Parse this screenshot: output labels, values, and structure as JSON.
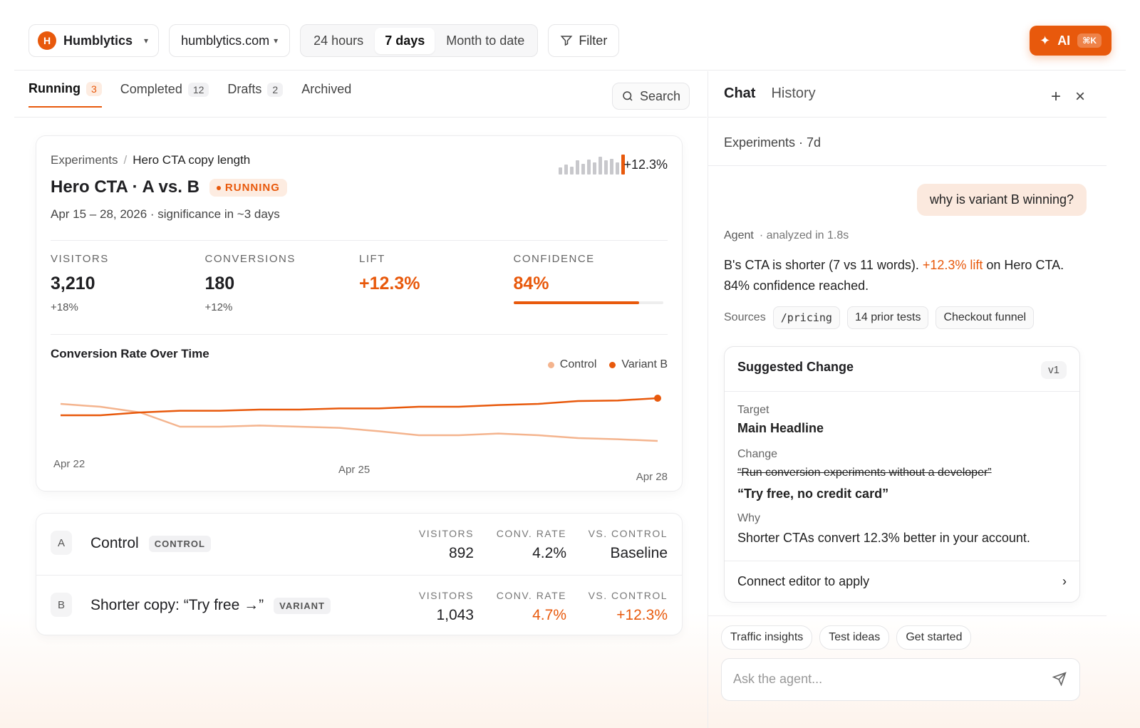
{
  "topbar": {
    "workspace": {
      "initial": "H",
      "name": "Humblytics"
    },
    "domain": "humblytics.com",
    "ranges": [
      "24 hours",
      "7 days",
      "Month to date"
    ],
    "active_range": "7 days",
    "filter_label": "Filter",
    "ai_label": "AI",
    "ai_shortcut": "⌘K"
  },
  "tabs": [
    {
      "label": "Running",
      "count": "3"
    },
    {
      "label": "Completed",
      "count": "12"
    },
    {
      "label": "Drafts",
      "count": "2"
    },
    {
      "label": "Archived",
      "count": ""
    }
  ],
  "search_label": "Search",
  "experiment": {
    "breadcrumb_root": "Experiments",
    "breadcrumb_current": "Hero CTA copy length",
    "title": "Hero CTA · A vs. B",
    "status": "RUNNING",
    "dates": "Apr 15 – 28, 2026 · significance in ~3 days",
    "spark_value": "+12.3%",
    "spark_bars": [
      0.35,
      0.5,
      0.4,
      0.7,
      0.55,
      0.75,
      0.6,
      0.9,
      0.7,
      0.8,
      0.6,
      1.0
    ],
    "metrics": [
      {
        "label": "VISITORS",
        "value": "3,210",
        "sub": "+18%"
      },
      {
        "label": "CONVERSIONS",
        "value": "180",
        "sub": "+12%"
      },
      {
        "label": "LIFT",
        "value": "+12.3%",
        "sub": ""
      },
      {
        "label": "CONFIDENCE",
        "value": "84%",
        "sub": ""
      }
    ],
    "confidence_fraction": 0.84
  },
  "chart_data": {
    "type": "line",
    "title": "Conversion Rate Over Time",
    "x_ticks": [
      "Apr 22",
      "Apr 25",
      "Apr 28"
    ],
    "grid": false,
    "legend_position": "top-right",
    "series": [
      {
        "name": "Control",
        "color": "#f4b48e",
        "values": [
          4.6,
          4.55,
          4.45,
          4.2,
          4.2,
          4.22,
          4.2,
          4.18,
          4.12,
          4.05,
          4.05,
          4.08,
          4.05,
          4.0,
          3.98,
          3.95
        ]
      },
      {
        "name": "Variant B",
        "color": "#e8590c",
        "values": [
          4.4,
          4.4,
          4.45,
          4.48,
          4.48,
          4.5,
          4.5,
          4.52,
          4.52,
          4.55,
          4.55,
          4.58,
          4.6,
          4.65,
          4.66,
          4.7
        ]
      }
    ]
  },
  "variants": [
    {
      "letter": "A",
      "name": "Control",
      "tag": "CONTROL",
      "visitors_label": "VISITORS",
      "visitors": "892",
      "rate_label": "CONV. RATE",
      "rate": "4.2%",
      "vs_label": "VS. CONTROL",
      "vs": "Baseline"
    },
    {
      "letter": "B",
      "name": "Shorter copy: “Try free →”",
      "tag": "VARIANT",
      "visitors_label": "VISITORS",
      "visitors": "1,043",
      "rate_label": "CONV. RATE",
      "rate": "4.7%",
      "vs_label": "VS. CONTROL",
      "vs": "+12.3%"
    }
  ],
  "chat": {
    "tabs": [
      "Chat",
      "History"
    ],
    "context": "Experiments · 7d",
    "user_message": "why is variant B winning?",
    "agent_name": "Agent",
    "agent_meta": "· analyzed in 1.8s",
    "reply_part1": "B's CTA is shorter (7 vs 11 words). ",
    "reply_highlight": "+12.3% lift",
    "reply_part2": " on Hero CTA. 84% confidence reached.",
    "sources_label": "Sources",
    "sources": [
      "/pricing",
      "14 prior tests",
      "Checkout funnel"
    ],
    "suggestion": {
      "title": "Suggested Change",
      "version": "v1",
      "target_label": "Target",
      "target": "Main Headline",
      "change_label": "Change",
      "old_text": "“Run conversion experiments without a developer”",
      "new_text": "“Try free, no credit card”",
      "why_label": "Why",
      "why": "Shorter CTAs convert 12.3% better in your account.",
      "apply_label": "Connect editor to apply"
    },
    "prompts": [
      "Traffic insights",
      "Test ideas",
      "Get started"
    ],
    "input_placeholder": "Ask the agent..."
  }
}
